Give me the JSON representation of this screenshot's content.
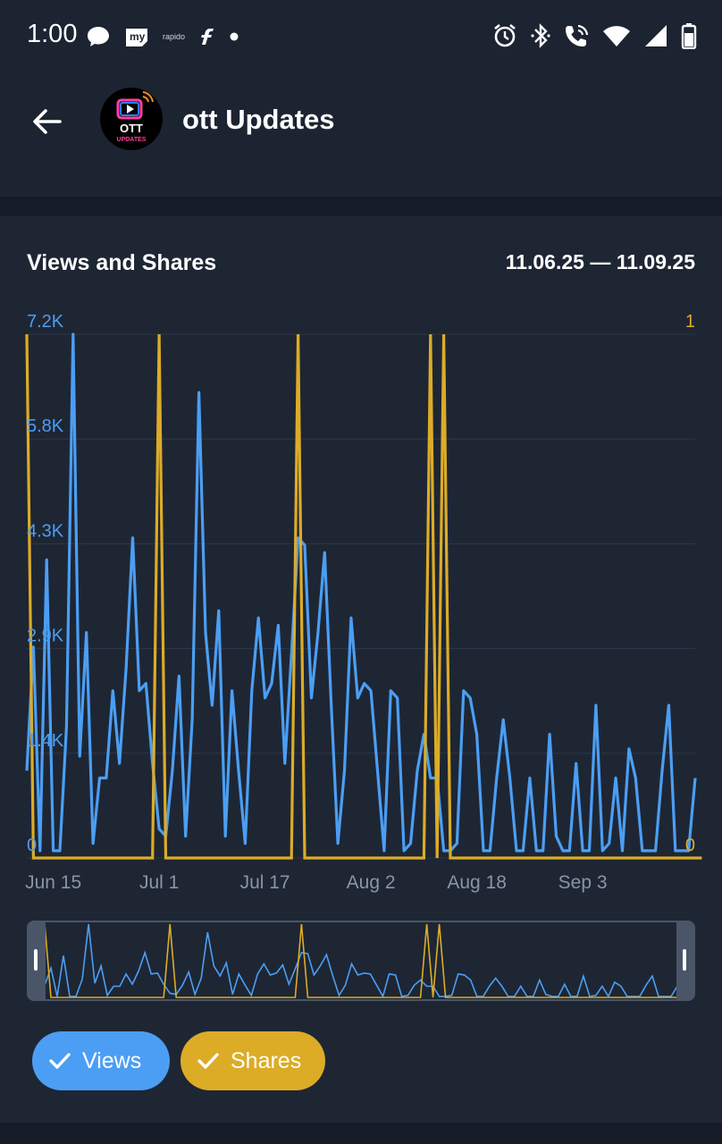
{
  "status_bar": {
    "time": "1:00",
    "left_icons": [
      "chat-bubble-icon",
      "my-app-icon",
      "rapido-app-icon",
      "flipkart-icon",
      "dot-icon"
    ],
    "rapido_label": "rapido",
    "right_icons": [
      "alarm-icon",
      "bluetooth-icon",
      "wifi-call-icon",
      "wifi-icon",
      "signal-icon",
      "battery-icon"
    ]
  },
  "header": {
    "title": "ott Updates",
    "avatar_text": {
      "line1": "OTT",
      "line2": "UPDATES"
    },
    "back_icon": "arrow-left-icon"
  },
  "chart_card": {
    "title": "Views and Shares",
    "date_range": "11.06.25 — 11.09.25"
  },
  "colors": {
    "views": "#4b9ef3",
    "shares": "#dcac27",
    "grid": "#2e3748",
    "axis_text": "#8a94a6"
  },
  "chart_data": {
    "type": "line",
    "x_start": "Jun 11",
    "x_ticks": [
      "Jun 15",
      "Jul 1",
      "Jul 17",
      "Aug 2",
      "Aug 18",
      "Sep 3"
    ],
    "y_left_ticks": [
      "0",
      "1.4K",
      "2.9K",
      "4.3K",
      "5.8K",
      "7.2K"
    ],
    "y_right_ticks": [
      "0",
      "1"
    ],
    "ylim_left": [
      0,
      7200
    ],
    "ylim_right": [
      0,
      1
    ],
    "grid": true,
    "series": [
      {
        "name": "Views",
        "axis": "left",
        "values": [
          1200,
          2900,
          100,
          4100,
          100,
          100,
          1800,
          7200,
          1400,
          3100,
          200,
          1100,
          1100,
          2300,
          1300,
          2600,
          4400,
          2300,
          2400,
          1300,
          400,
          300,
          1200,
          2500,
          300,
          1900,
          6400,
          3100,
          2100,
          3400,
          300,
          2300,
          1200,
          200,
          2300,
          3300,
          2200,
          2400,
          3200,
          1300,
          2800,
          4400,
          4300,
          2200,
          3100,
          4200,
          2100,
          200,
          1200,
          3300,
          2200,
          2400,
          2300,
          1200,
          100,
          2300,
          2200,
          100,
          200,
          1200,
          1700,
          1100,
          1100,
          100,
          100,
          200,
          2300,
          2200,
          1700,
          100,
          100,
          1100,
          1900,
          1100,
          100,
          100,
          1100,
          100,
          100,
          1700,
          300,
          100,
          100,
          1300,
          100,
          100,
          2100,
          100,
          200,
          1100,
          100,
          1500,
          1100,
          100,
          100,
          100,
          1200,
          2100,
          100,
          100,
          100,
          1100
        ]
      },
      {
        "name": "Shares",
        "axis": "right",
        "values": [
          1,
          0,
          0,
          0,
          0,
          0,
          0,
          0,
          0,
          0,
          0,
          0,
          0,
          0,
          0,
          0,
          0,
          0,
          0,
          0,
          1,
          0,
          0,
          0,
          0,
          0,
          0,
          0,
          0,
          0,
          0,
          0,
          0,
          0,
          0,
          0,
          0,
          0,
          0,
          0,
          0,
          1,
          0,
          0,
          0,
          0,
          0,
          0,
          0,
          0,
          0,
          0,
          0,
          0,
          0,
          0,
          0,
          0,
          0,
          0,
          0,
          1,
          0,
          1,
          0,
          0,
          0,
          0,
          0,
          0,
          0,
          0,
          0,
          0,
          0,
          0,
          0,
          0,
          0,
          0,
          0,
          0,
          0,
          0,
          0,
          0,
          0,
          0,
          0,
          0,
          0,
          0,
          0,
          0,
          0,
          0,
          0,
          0,
          0,
          0,
          0,
          0,
          0
        ]
      }
    ]
  },
  "legend": {
    "views_label": "Views",
    "shares_label": "Shares",
    "check_icon": "checkmark-icon"
  }
}
